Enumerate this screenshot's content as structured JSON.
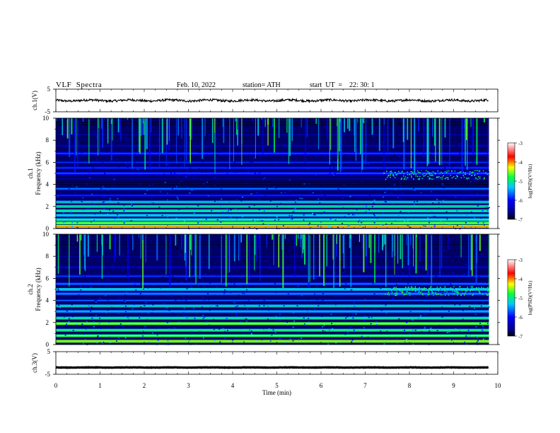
{
  "header": {
    "title": "VLF  Spectra",
    "date": "Feb. 10, 2022",
    "station": "station= ATH",
    "start_ut": "start  UT  =    22: 30: 1"
  },
  "chart_data": [
    {
      "type": "line",
      "panel": "ch1_waveform",
      "ylabel": "ch.1(V)",
      "ylim": [
        -5,
        5
      ],
      "yticks": [
        "5",
        "-5"
      ],
      "xlim": [
        0,
        10
      ],
      "series_extent_min": [
        0,
        9.8
      ],
      "approx_level_v": 0
    },
    {
      "type": "heatmap",
      "panel": "ch1_spectrogram",
      "ylabel_lines": [
        "ch.1",
        "Frequency  (kHz)"
      ],
      "ylim": [
        0,
        10
      ],
      "yticks": [
        "0",
        "2",
        "4",
        "6",
        "8",
        "10"
      ],
      "xlim": [
        0,
        10
      ],
      "data_extent_min": [
        0,
        9.8
      ],
      "colorbar": {
        "label": "log(PSD)(V²/Hz)",
        "range": [
          -7,
          -3
        ],
        "ticks": [
          "-3",
          "-4",
          "-5",
          "-6",
          "-7"
        ]
      },
      "bands_khz": [
        {
          "f": 0.2,
          "level": -4.4
        },
        {
          "f": 0.5,
          "level": -4.9
        },
        {
          "f": 0.8,
          "level": -5.2
        },
        {
          "f": 1.2,
          "level": -5.4
        },
        {
          "f": 1.6,
          "level": -5.3
        },
        {
          "f": 2.0,
          "level": -5.4
        },
        {
          "f": 2.4,
          "level": -5.5
        },
        {
          "f": 3.0,
          "level": -6.3
        },
        {
          "f": 3.6,
          "level": -5.9
        },
        {
          "f": 4.1,
          "level": -6.9
        },
        {
          "f": 4.5,
          "level": -6.8
        },
        {
          "f": 5.0,
          "level": -6.0
        },
        {
          "f": 5.5,
          "level": -6.2
        },
        {
          "f": 6.0,
          "level": -6.3
        },
        {
          "f": 6.8,
          "level": -6.1
        },
        {
          "f": 7.5,
          "level": -6.7
        },
        {
          "f": 8.5,
          "level": -6.8
        },
        {
          "f": 9.5,
          "level": -6.9
        }
      ]
    },
    {
      "type": "heatmap",
      "panel": "ch2_spectrogram",
      "ylabel_lines": [
        "ch.2",
        "Frequency  (kHz)"
      ],
      "ylim": [
        0,
        10
      ],
      "yticks": [
        "0",
        "2",
        "4",
        "6",
        "8",
        "10"
      ],
      "xlim": [
        0,
        10
      ],
      "data_extent_min": [
        0,
        9.8
      ],
      "colorbar": {
        "label": "log(PSD)(V²/Hz)",
        "range": [
          -7,
          -3
        ],
        "ticks": [
          "-3",
          "-4",
          "-5",
          "-6",
          "-7"
        ]
      },
      "bands_khz": [
        {
          "f": 0.3,
          "level": -4.6
        },
        {
          "f": 0.8,
          "level": -4.9
        },
        {
          "f": 1.3,
          "level": -5.2
        },
        {
          "f": 1.9,
          "level": -4.7
        },
        {
          "f": 2.4,
          "level": -5.3
        },
        {
          "f": 3.0,
          "level": -5.6
        },
        {
          "f": 3.5,
          "level": -5.4
        },
        {
          "f": 4.0,
          "level": -6.0
        },
        {
          "f": 4.6,
          "level": -5.8
        },
        {
          "f": 5.0,
          "level": -5.4
        },
        {
          "f": 5.5,
          "level": -5.9
        },
        {
          "f": 6.2,
          "level": -6.2
        },
        {
          "f": 7.0,
          "level": -6.6
        },
        {
          "f": 8.0,
          "level": -6.8
        },
        {
          "f": 9.2,
          "level": -6.9
        }
      ]
    },
    {
      "type": "line",
      "panel": "ch3_waveform",
      "ylabel": "ch.3(V)",
      "ylim": [
        -5,
        5
      ],
      "yticks": [
        "5",
        "-5"
      ],
      "xlim": [
        0,
        10
      ],
      "series_extent_min": [
        0,
        9.8
      ],
      "approx_level_v": -2,
      "xlabel": "Time  (min)",
      "xticks": [
        "0",
        "1",
        "2",
        "3",
        "4",
        "5",
        "6",
        "7",
        "8",
        "9",
        "10"
      ]
    }
  ]
}
